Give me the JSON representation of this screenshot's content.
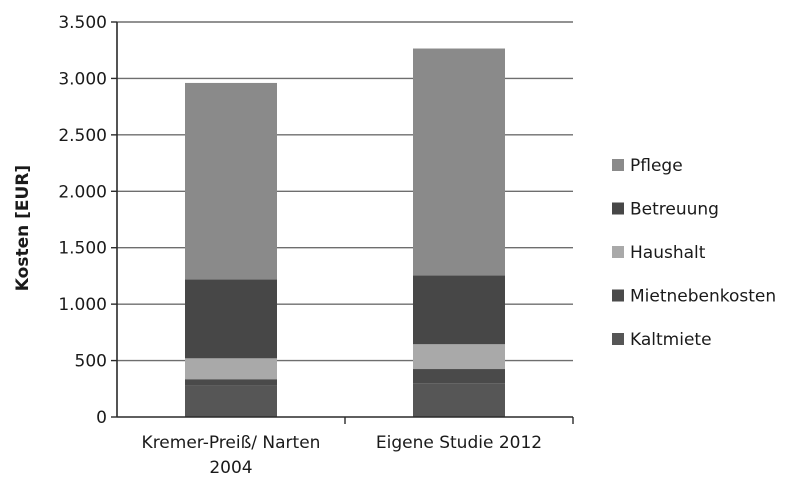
{
  "chart_data": {
    "type": "bar",
    "stacked": true,
    "ylabel": "Kosten [EUR]",
    "ylim": [
      0,
      3500
    ],
    "y_ticks": [
      0,
      500,
      1000,
      1500,
      2000,
      2500,
      3000,
      3500
    ],
    "y_tick_labels": [
      "0",
      "500",
      "1.000",
      "1.500",
      "2.000",
      "2.500",
      "3.000",
      "3.500"
    ],
    "grid": true,
    "legend_position": "right",
    "categories": [
      [
        "Kremer-Preiß/ Narten",
        "2004"
      ],
      [
        "Eigene Studie 2012"
      ]
    ],
    "series": [
      {
        "name": "Kaltmiete",
        "values": [
          280,
          300
        ],
        "color": "#565656"
      },
      {
        "name": "Mietnebenkosten",
        "values": [
          55,
          125
        ],
        "color": "#4a4a4a"
      },
      {
        "name": "Haushalt",
        "values": [
          185,
          220
        ],
        "color": "#a9a9a9"
      },
      {
        "name": "Betreuung",
        "values": [
          700,
          610
        ],
        "color": "#474747"
      },
      {
        "name": "Pflege",
        "values": [
          1740,
          2010
        ],
        "color": "#8a8a8a"
      }
    ],
    "legend_order": [
      "Pflege",
      "Betreuung",
      "Haushalt",
      "Mietnebenkosten",
      "Kaltmiete"
    ]
  }
}
